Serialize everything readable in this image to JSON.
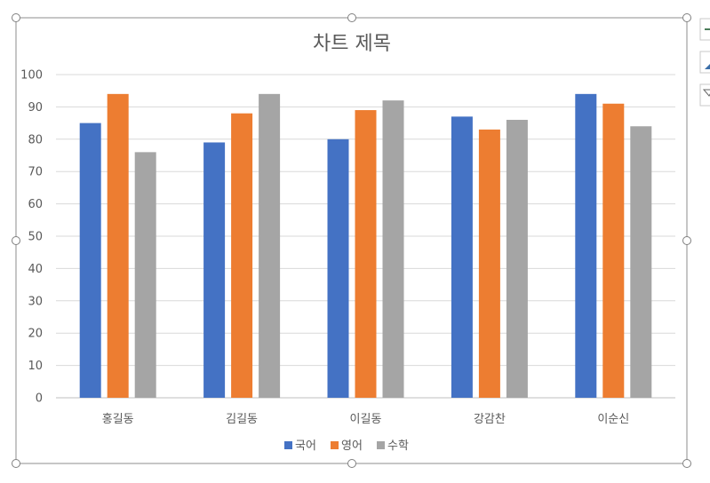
{
  "chart_data": {
    "type": "bar",
    "title": "차트 제목",
    "categories": [
      "홍길동",
      "김길동",
      "이길동",
      "강감찬",
      "이순신"
    ],
    "series": [
      {
        "name": "국어",
        "color": "#4472C4",
        "values": [
          85,
          79,
          80,
          87,
          94
        ]
      },
      {
        "name": "영어",
        "color": "#ED7D31",
        "values": [
          94,
          88,
          89,
          83,
          91
        ]
      },
      {
        "name": "수학",
        "color": "#A5A5A5",
        "values": [
          76,
          94,
          92,
          86,
          84
        ]
      }
    ],
    "ylim": [
      0,
      100
    ],
    "yticks": [
      0,
      10,
      20,
      30,
      40,
      50,
      60,
      70,
      80,
      90,
      100
    ],
    "grid": true,
    "legend_position": "bottom",
    "selected": true
  },
  "side_buttons": [
    {
      "icon": "chart-elements-plus-icon"
    },
    {
      "icon": "chart-styles-brush-icon"
    },
    {
      "icon": "chart-filters-funnel-icon"
    }
  ]
}
